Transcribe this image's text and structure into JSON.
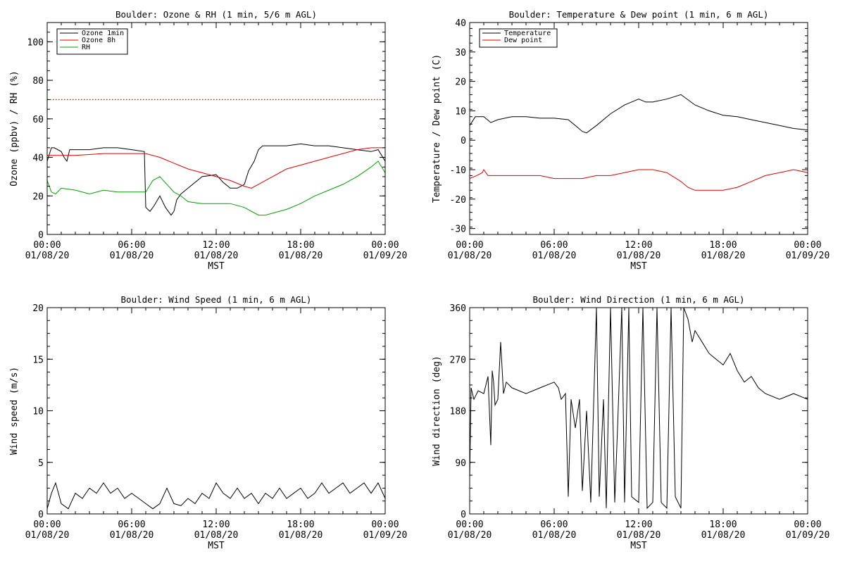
{
  "chart_data": [
    {
      "type": "line",
      "title": "Boulder: Ozone & RH (1 min, 5/6 m AGL)",
      "xlabel": "MST",
      "ylabel": "Ozone (ppbv) / RH (%)",
      "xlim": [
        0,
        24
      ],
      "ylim": [
        0,
        110
      ],
      "yticks": [
        0,
        20,
        40,
        60,
        80,
        100
      ],
      "xticks": [
        {
          "x": 0,
          "time": "00:00",
          "date": "01/08/20"
        },
        {
          "x": 6,
          "time": "06:00",
          "date": "01/08/20"
        },
        {
          "x": 12,
          "time": "12:00",
          "date": "01/08/20"
        },
        {
          "x": 18,
          "time": "18:00",
          "date": "01/08/20"
        },
        {
          "x": 24,
          "time": "00:00",
          "date": "01/09/20"
        }
      ],
      "legend_position": "top-left",
      "reference_line": {
        "y": 70,
        "color": "#ff0000",
        "style": "dotted"
      },
      "series": [
        {
          "name": "Ozone 1min",
          "color": "#000000",
          "x": [
            0,
            0.3,
            0.5,
            1,
            1.2,
            1.4,
            1.6,
            2,
            3,
            4,
            5,
            6,
            6.9,
            7.0,
            7.3,
            7.6,
            8,
            8.4,
            8.8,
            9.0,
            9.2,
            9.5,
            10,
            11,
            12,
            12.5,
            13,
            13.5,
            14,
            14.3,
            14.7,
            15,
            15.3,
            16,
            17,
            18,
            19,
            20,
            21,
            22,
            23,
            23.5,
            24
          ],
          "y": [
            38,
            45,
            45,
            43,
            40,
            38,
            44,
            44,
            44,
            45,
            45,
            44,
            43,
            14,
            12,
            15,
            20,
            14,
            10,
            12,
            18,
            21,
            24,
            30,
            31,
            27,
            24,
            24,
            26,
            33,
            38,
            44,
            46,
            46,
            46,
            47,
            46,
            46,
            45,
            44,
            43,
            44,
            38
          ]
        },
        {
          "name": "Ozone 8h",
          "color": "#e00000",
          "x": [
            0,
            2,
            4,
            6,
            7,
            8,
            9,
            10,
            11,
            12,
            13,
            14,
            14.5,
            15,
            16,
            17,
            18,
            19,
            20,
            21,
            22,
            23,
            24
          ],
          "y": [
            41,
            41,
            42,
            42,
            42,
            40,
            37,
            34,
            32,
            30,
            28,
            25,
            24,
            26,
            30,
            34,
            36,
            38,
            40,
            42,
            44,
            45,
            45
          ]
        },
        {
          "name": "RH",
          "color": "#00a000",
          "x": [
            0,
            0.3,
            0.6,
            1,
            2,
            3,
            4,
            5,
            6,
            7,
            7.5,
            8,
            8.5,
            9,
            9.5,
            10,
            11,
            12,
            13,
            14,
            15,
            15.5,
            16,
            17,
            18,
            19,
            20,
            21,
            22,
            23,
            23.5,
            24
          ],
          "y": [
            28,
            22,
            21,
            24,
            23,
            21,
            23,
            22,
            22,
            22,
            28,
            30,
            26,
            22,
            20,
            17,
            16,
            16,
            16,
            14,
            10,
            10,
            11,
            13,
            16,
            20,
            23,
            26,
            30,
            35,
            38,
            32
          ]
        }
      ]
    },
    {
      "type": "line",
      "title": "Boulder: Temperature & Dew point (1 min, 6 m AGL)",
      "xlabel": "MST",
      "ylabel": "Temperature / Dew point (C)",
      "xlim": [
        0,
        24
      ],
      "ylim": [
        -32,
        40
      ],
      "yticks": [
        -30,
        -20,
        -10,
        0,
        10,
        20,
        30,
        40
      ],
      "xticks": [
        {
          "x": 0,
          "time": "00:00",
          "date": "01/08/20"
        },
        {
          "x": 6,
          "time": "06:00",
          "date": "01/08/20"
        },
        {
          "x": 12,
          "time": "12:00",
          "date": "01/08/20"
        },
        {
          "x": 18,
          "time": "18:00",
          "date": "01/08/20"
        },
        {
          "x": 24,
          "time": "00:00",
          "date": "01/09/20"
        }
      ],
      "legend_position": "top-left",
      "series": [
        {
          "name": "Temperature",
          "color": "#000000",
          "x": [
            0,
            0.4,
            1,
            1.5,
            2,
            3,
            4,
            5,
            6,
            7,
            7.5,
            8,
            8.3,
            9,
            10,
            11,
            12,
            12.5,
            13,
            14,
            15,
            16,
            17,
            18,
            19,
            20,
            21,
            22,
            23,
            24
          ],
          "y": [
            5,
            8,
            8,
            6,
            7,
            8,
            8,
            7.5,
            7.5,
            7,
            5,
            3,
            2.5,
            5,
            9,
            12,
            14,
            13,
            13,
            14,
            15.5,
            12,
            10,
            8.5,
            8,
            7,
            6,
            5,
            4,
            3.5
          ]
        },
        {
          "name": "Dew point",
          "color": "#e00000",
          "x": [
            0,
            0.5,
            0.9,
            1,
            1.3,
            2,
            3,
            4,
            5,
            6,
            7,
            8,
            9,
            10,
            11,
            12,
            13,
            14,
            15,
            15.5,
            16,
            17,
            18,
            19,
            20,
            21,
            22,
            23,
            24
          ],
          "y": [
            -13,
            -12,
            -11,
            -10,
            -12,
            -12,
            -12,
            -12,
            -12,
            -13,
            -13,
            -13,
            -12,
            -12,
            -11,
            -10,
            -10,
            -11,
            -14,
            -16,
            -17,
            -17,
            -17,
            -16,
            -14,
            -12,
            -11,
            -10,
            -11
          ]
        }
      ]
    },
    {
      "type": "line",
      "title": "Boulder: Wind Speed (1 min, 6 m AGL)",
      "xlabel": "MST",
      "ylabel": "Wind speed (m/s)",
      "xlim": [
        0,
        24
      ],
      "ylim": [
        0,
        20
      ],
      "yticks": [
        0,
        5,
        10,
        15,
        20
      ],
      "xticks": [
        {
          "x": 0,
          "time": "00:00",
          "date": "01/08/20"
        },
        {
          "x": 6,
          "time": "06:00",
          "date": "01/08/20"
        },
        {
          "x": 12,
          "time": "12:00",
          "date": "01/08/20"
        },
        {
          "x": 18,
          "time": "18:00",
          "date": "01/08/20"
        },
        {
          "x": 24,
          "time": "00:00",
          "date": "01/09/20"
        }
      ],
      "series": [
        {
          "name": "",
          "color": "#000000",
          "x": [
            0,
            0.3,
            0.6,
            1,
            1.5,
            2,
            2.5,
            3,
            3.5,
            4,
            4.5,
            5,
            5.5,
            6,
            6.5,
            7,
            7.5,
            8,
            8.5,
            9,
            9.5,
            10,
            10.5,
            11,
            11.5,
            12,
            12.5,
            13,
            13.5,
            14,
            14.5,
            15,
            15.5,
            16,
            16.5,
            17,
            17.5,
            18,
            18.5,
            19,
            19.5,
            20,
            20.5,
            21,
            21.5,
            22,
            22.5,
            23,
            23.5,
            24
          ],
          "y": [
            0.5,
            2,
            3,
            1,
            0.5,
            2,
            1.5,
            2.5,
            2,
            3,
            2,
            2.5,
            1.5,
            2,
            1.5,
            1,
            0.5,
            1,
            2.5,
            1,
            0.8,
            1.5,
            1,
            2,
            1.5,
            3,
            2,
            1.5,
            2.5,
            1.5,
            2,
            1,
            2,
            1.5,
            2.5,
            1.5,
            2,
            2.5,
            1.5,
            2,
            3,
            2,
            2.5,
            3,
            2,
            2.5,
            3,
            2,
            3,
            1.5
          ]
        }
      ]
    },
    {
      "type": "line",
      "title": "Boulder: Wind Direction (1 min, 6 m AGL)",
      "xlabel": "MST",
      "ylabel": "Wind direction (deg)",
      "xlim": [
        0,
        24
      ],
      "ylim": [
        0,
        360
      ],
      "yticks": [
        0,
        90,
        180,
        270,
        360
      ],
      "xticks": [
        {
          "x": 0,
          "time": "00:00",
          "date": "01/08/20"
        },
        {
          "x": 6,
          "time": "06:00",
          "date": "01/08/20"
        },
        {
          "x": 12,
          "time": "12:00",
          "date": "01/08/20"
        },
        {
          "x": 18,
          "time": "18:00",
          "date": "01/08/20"
        },
        {
          "x": 24,
          "time": "00:00",
          "date": "01/09/20"
        }
      ],
      "series": [
        {
          "name": "",
          "color": "#000000",
          "x": [
            0,
            0.1,
            0.3,
            0.6,
            1,
            1.3,
            1.5,
            1.6,
            1.7,
            1.8,
            2,
            2.2,
            2.4,
            2.6,
            3,
            4,
            5,
            6,
            6.3,
            6.5,
            6.8,
            7,
            7.2,
            7.5,
            7.8,
            8,
            8.3,
            8.6,
            9,
            9.2,
            9.5,
            9.7,
            10,
            10.3,
            10.5,
            10.8,
            11,
            11.3,
            11.5,
            12,
            12.3,
            12.6,
            13,
            13.3,
            13.6,
            14,
            14.3,
            14.6,
            15,
            15.2,
            15.5,
            15.8,
            16,
            16.5,
            17,
            17.5,
            18,
            18.5,
            19,
            19.5,
            20,
            20.5,
            21,
            22,
            23,
            24
          ],
          "y": [
            60,
            220,
            200,
            215,
            210,
            240,
            120,
            250,
            230,
            190,
            200,
            300,
            210,
            230,
            220,
            210,
            220,
            230,
            220,
            200,
            210,
            30,
            200,
            150,
            200,
            40,
            180,
            20,
            360,
            30,
            200,
            10,
            360,
            20,
            150,
            360,
            20,
            360,
            30,
            20,
            360,
            10,
            20,
            360,
            20,
            10,
            360,
            30,
            10,
            360,
            340,
            300,
            320,
            300,
            280,
            270,
            260,
            280,
            250,
            230,
            240,
            220,
            210,
            200,
            210,
            200
          ]
        }
      ]
    }
  ]
}
